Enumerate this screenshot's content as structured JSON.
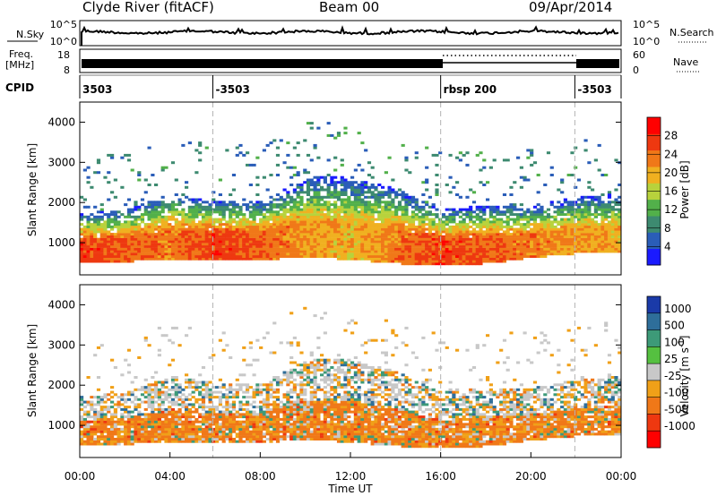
{
  "header": {
    "station": "Clyde River (fitACF)",
    "beam": "Beam 00",
    "date": "09/Apr/2014"
  },
  "strips": {
    "noise_left_label": "N.Sky",
    "noise_left_ticks": [
      "10^5",
      "10^0"
    ],
    "noise_right_ticks": [
      "10^5",
      "10^0"
    ],
    "noise_right_label": "N.Search",
    "freq_label_line1": "Freq.",
    "freq_label_line2": "[MHz]",
    "freq_ticks": [
      "18",
      "8"
    ],
    "nave_ticks": [
      "60",
      "0"
    ],
    "nave_label": "Nave",
    "cpid_label": "CPID",
    "cpid_segments": [
      {
        "start_hour": 0,
        "label": "3503"
      },
      {
        "start_hour": 5.9,
        "label": "-3503"
      },
      {
        "start_hour": 16.0,
        "label": "rbsp 200"
      },
      {
        "start_hour": 21.95,
        "label": "-3503"
      }
    ]
  },
  "chart_data": [
    {
      "type": "heatmap",
      "panel": "power",
      "xlabel": "",
      "ylabel": "Slant Range [km]",
      "xlim": [
        0,
        24
      ],
      "ylim": [
        200,
        4500
      ],
      "yticks": [
        "1000",
        "2000",
        "3000",
        "4000"
      ],
      "colorbar_label": "Power [dB]",
      "colorbar_ticks": [
        "4",
        "8",
        "12",
        "16",
        "20",
        "24",
        "28"
      ],
      "colorbar_range": [
        0,
        32
      ],
      "colorscale": [
        "#1a1aff",
        "#2a5db8",
        "#3d8a70",
        "#52b04a",
        "#b8d23c",
        "#f0b020",
        "#f07818",
        "#ee3810",
        "#ff0000"
      ],
      "markers_hours": [
        5.9,
        16.0,
        21.95
      ],
      "echo_region_profile": {
        "hours": [
          0,
          2,
          4,
          6,
          8,
          10,
          12,
          14,
          16,
          18,
          20,
          22,
          24
        ],
        "range_low_km": [
          500,
          500,
          550,
          550,
          550,
          600,
          550,
          450,
          400,
          450,
          600,
          700,
          700
        ],
        "range_high_km": [
          1700,
          1800,
          2200,
          2000,
          2000,
          2600,
          2600,
          2300,
          1800,
          1900,
          1900,
          2100,
          2200
        ],
        "peak_power_db": [
          28,
          26,
          24,
          28,
          26,
          22,
          20,
          24,
          28,
          26,
          24,
          22,
          20
        ]
      }
    },
    {
      "type": "heatmap",
      "panel": "velocity",
      "xlabel": "Time UT",
      "ylabel": "Slant Range [km]",
      "xlim": [
        0,
        24
      ],
      "ylim": [
        200,
        4500
      ],
      "xticks": [
        "00:00",
        "04:00",
        "08:00",
        "12:00",
        "16:00",
        "20:00",
        "00:00"
      ],
      "yticks": [
        "1000",
        "2000",
        "3000",
        "4000"
      ],
      "colorbar_label": "Velocity [m s^-1]",
      "colorbar_ticks": [
        "1000",
        "500",
        "100",
        "25",
        "-25",
        "-100",
        "-500",
        "-1000"
      ],
      "colorscale": [
        "#1a3aa8",
        "#2e6e9a",
        "#3d9a78",
        "#55c040",
        "#c8c8c8",
        "#f0a018",
        "#f07818",
        "#ee3810",
        "#ff0000"
      ],
      "markers_hours": [
        5.9,
        16.0,
        21.95
      ]
    }
  ]
}
